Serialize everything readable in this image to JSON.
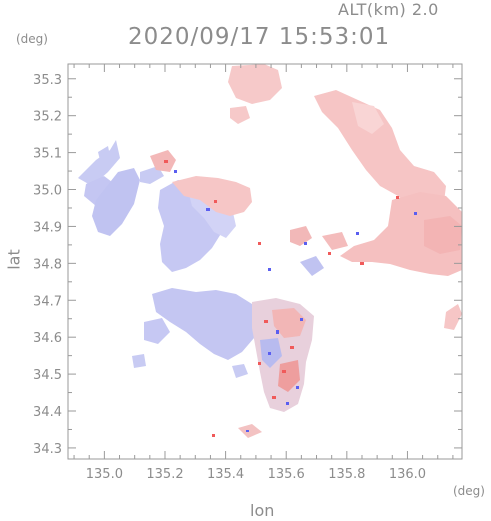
{
  "header": {
    "altitude_label": "ALT(km) 2.0",
    "datetime": "2020/09/17 15:53:01"
  },
  "axes": {
    "y_unit": "(deg)",
    "x_unit": "(deg)",
    "y_title": "lat",
    "x_title": "lon",
    "x_ticks": [
      "135.0",
      "135.2",
      "135.4",
      "135.6",
      "135.8",
      "136.0"
    ],
    "y_ticks": [
      "35.3",
      "35.2",
      "35.1",
      "35.0",
      "34.9",
      "34.8",
      "34.7",
      "34.6",
      "34.5",
      "34.4",
      "34.3"
    ],
    "x_range": [
      134.88,
      136.18
    ],
    "y_range": [
      34.27,
      35.34
    ]
  },
  "colors": {
    "frame": "#9a9a9a",
    "text": "#8c8c8c",
    "approaching": "#c4c6f2",
    "receding": "#f5c2c2",
    "strong_approaching": "#5a5ef0",
    "strong_receding": "#f05a5a"
  }
}
